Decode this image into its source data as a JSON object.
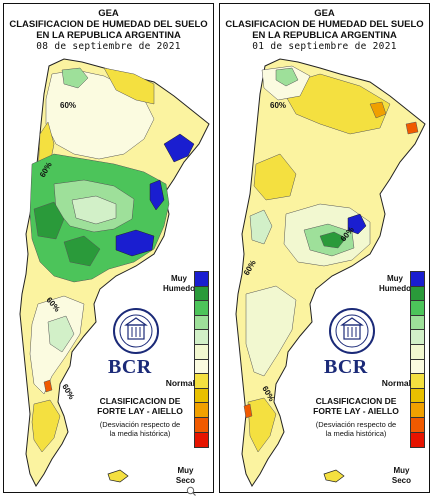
{
  "colors": {
    "muy_humedo": "#1a1ed0",
    "scale": [
      "#1a1ed0",
      "#2a9a3a",
      "#4cc45a",
      "#9ee09a",
      "#d2f0c8",
      "#f2f8d0",
      "#fbfbe0",
      "#f4e040",
      "#e8c000",
      "#f0a000",
      "#f05a00",
      "#e61400"
    ],
    "bcr_blue": "#1b2a78"
  },
  "panels": [
    {
      "title_line1": "GEA",
      "title_line2": "CLASIFICACION DE HUMEDAD DEL SUELO",
      "title_line3": "EN LA REPUBLICA ARGENTINA",
      "date": "08 de septiembre de 2021",
      "contour_labels": [
        "60%",
        "60%",
        "60%",
        "60%"
      ],
      "legend_top": "Muy\nHumedo",
      "legend_normal": "Normal",
      "legend_bottom": "Muy\nSeco",
      "bcr": "BCR",
      "source_line1": "CLASIFICACION DE",
      "source_line2": "FORTE LAY - AIELLO",
      "note_line1": "(Desviación respecto de",
      "note_line2": "la media histórica)"
    },
    {
      "title_line1": "GEA",
      "title_line2": "CLASIFICACION DE HUMEDAD DEL SUELO",
      "title_line3": "EN LA REPUBLICA ARGENTINA",
      "date": "01 de septiembre de 2021",
      "contour_labels": [
        "60%",
        "60%",
        "60%",
        "60%"
      ],
      "legend_top": "Muy\nHumedo",
      "legend_normal": "Normal",
      "legend_bottom": "Muy\nSeco",
      "bcr": "BCR",
      "source_line1": "CLASIFICACION DE",
      "source_line2": "FORTE LAY - AIELLO",
      "note_line1": "(Desviación respecto de",
      "note_line2": "la media histórica)"
    }
  ]
}
